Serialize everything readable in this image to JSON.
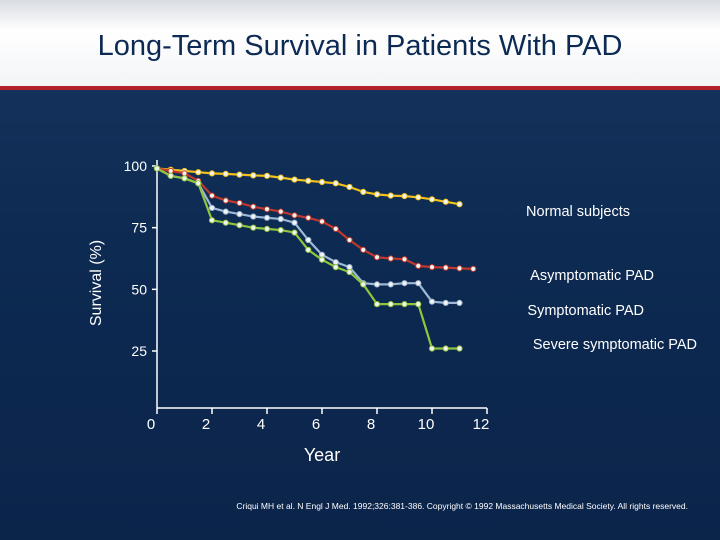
{
  "slide": {
    "title": "Long-Term Survival in Patients With PAD",
    "source": "Criqui MH et al. N Engl J Med. 1992;326:381-386. Copyright © 1992 Massachusetts Medical Society. All rights reserved."
  },
  "colors": {
    "background": "#0d2a52",
    "title_band": "#ffffff",
    "title_rule": "#b3202a",
    "axis_text": "#ffffff",
    "series_label": "#ffffff"
  },
  "chart_data": {
    "type": "line",
    "title": "Long-Term Survival in Patients With PAD",
    "xlabel": "Year",
    "ylabel": "Survival (%)",
    "xlim": [
      0,
      12
    ],
    "ylim": [
      0,
      100
    ],
    "xticks": [
      0,
      2,
      4,
      6,
      8,
      10,
      12
    ],
    "yticks": [
      25,
      50,
      75,
      100
    ],
    "grid": false,
    "legend": "direct labels at right end of each line",
    "series": [
      {
        "name": "Normal subjects",
        "color": "#f2c21a",
        "x": [
          0,
          0.5,
          1,
          1.5,
          2,
          2.5,
          3,
          3.5,
          4,
          4.5,
          5,
          5.5,
          6,
          6.5,
          7,
          7.5,
          8,
          8.5,
          9,
          9.5,
          10,
          10.5,
          11
        ],
        "y": [
          99,
          98.5,
          98,
          97.5,
          97,
          96.8,
          96.5,
          96.2,
          96,
          95.3,
          94.5,
          94,
          93.5,
          93,
          91.5,
          89.5,
          88.5,
          88,
          87.8,
          87.3,
          86.5,
          85.5,
          84.5
        ]
      },
      {
        "name": "Asymptomatic PAD",
        "color": "#c0392b",
        "x": [
          0,
          0.5,
          1,
          1.5,
          2,
          2.5,
          3,
          3.5,
          4,
          4.5,
          5,
          5.5,
          6,
          6.5,
          7,
          7.5,
          8,
          8.5,
          9,
          9.5,
          10,
          10.5,
          11,
          11.5
        ],
        "y": [
          99,
          98,
          97,
          94,
          88,
          86,
          85,
          83.5,
          82.5,
          81.5,
          80,
          79,
          77.5,
          74.5,
          70,
          66,
          63,
          62.5,
          62.2,
          59.5,
          59,
          58.8,
          58.5,
          58.3
        ]
      },
      {
        "name": "Symptomatic PAD",
        "color": "#9eb8d6",
        "x": [
          0,
          0.5,
          1,
          1.5,
          2,
          2.5,
          3,
          3.5,
          4,
          4.5,
          5,
          5.5,
          6,
          6.5,
          7,
          7.5,
          8,
          8.5,
          9,
          9.5,
          10,
          10.5,
          11
        ],
        "y": [
          99,
          96,
          95,
          93,
          83,
          81.5,
          80.5,
          79.5,
          79,
          78.5,
          77,
          70,
          64,
          61,
          59,
          52.5,
          52,
          52,
          52.5,
          52.5,
          45,
          44.5,
          44.5
        ]
      },
      {
        "name": "Severe symptomatic PAD",
        "color": "#8fc63e",
        "x": [
          0,
          0.5,
          1,
          1.5,
          2,
          2.5,
          3,
          3.5,
          4,
          4.5,
          5,
          5.5,
          6,
          6.5,
          7,
          7.5,
          8,
          8.5,
          9,
          9.5,
          10,
          10.5,
          11
        ],
        "y": [
          99,
          96,
          95,
          93,
          78,
          77,
          76,
          75,
          74.5,
          74,
          73,
          66,
          62,
          59,
          57,
          52,
          44,
          44,
          44,
          44,
          26,
          26,
          26
        ]
      }
    ]
  }
}
